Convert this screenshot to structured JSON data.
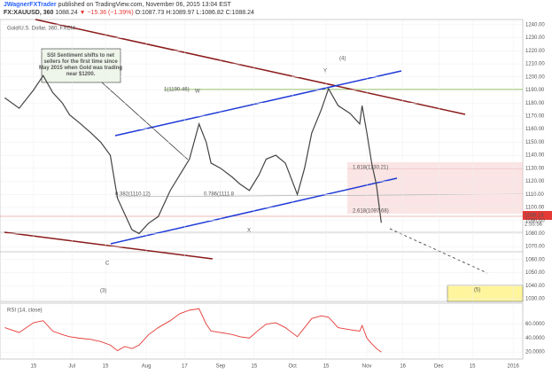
{
  "header": {
    "author": "JWagnerFXTrader",
    "published": "published on TradingView.com, November 06, 2015 13:04 EST",
    "symbol": "FX:XAUUSD, 360",
    "price": "1088.24",
    "change": "▼ −15.36 (−1.39%)",
    "ohlc": "O:1087.73 H:1089.97 L:1086.82 C:1088.24"
  },
  "chart_data": [
    {
      "type": "line",
      "title": "Gold/U.S. Dollar, 360, FXCM",
      "x": [
        2,
        8,
        14,
        18,
        22,
        26,
        29,
        33,
        38,
        42,
        46,
        49,
        52,
        55,
        58,
        62,
        66,
        71,
        75,
        79,
        83,
        86,
        88,
        92,
        97,
        100,
        104,
        108,
        111,
        115,
        119,
        124,
        127,
        130,
        134,
        137,
        141,
        146,
        150,
        151,
        153,
        155,
        157,
        159
      ],
      "series": [
        {
          "name": "XAUUSD",
          "color": "#444444",
          "values": [
            1184,
            1176,
            1190,
            1201,
            1188,
            1180,
            1171,
            1165,
            1157,
            1150,
            1140,
            1107,
            1095,
            1083,
            1080,
            1088,
            1093,
            1113,
            1125,
            1137,
            1164,
            1150,
            1134,
            1130,
            1123,
            1118,
            1113,
            1125,
            1137,
            1140,
            1134,
            1110,
            1130,
            1157,
            1175,
            1191,
            1178,
            1172,
            1164,
            1178,
            1157,
            1134,
            1117,
            1088.24
          ]
        }
      ],
      "xlim": [
        0,
        218
      ],
      "xticks": [
        {
          "value": 14,
          "label": "15"
        },
        {
          "value": 30,
          "label": "Jul"
        },
        {
          "value": 44,
          "label": "15"
        },
        {
          "value": 61,
          "label": "Aug"
        },
        {
          "value": 77,
          "label": "17"
        },
        {
          "value": 92,
          "label": "Sep"
        },
        {
          "value": 106,
          "label": "15"
        },
        {
          "value": 122,
          "label": "Oct"
        },
        {
          "value": 136,
          "label": "15"
        },
        {
          "value": 153,
          "label": "Nov"
        },
        {
          "value": 168,
          "label": "16"
        },
        {
          "value": 183,
          "label": "Dec"
        },
        {
          "value": 197,
          "label": "15"
        },
        {
          "value": 214,
          "label": "2016"
        }
      ],
      "ylim": [
        1028,
        1244
      ],
      "yticks": [
        {
          "value": 1030,
          "label": "1030.00"
        },
        {
          "value": 1040,
          "label": "1040.00"
        },
        {
          "value": 1050,
          "label": "1050.00"
        },
        {
          "value": 1060,
          "label": "1060.00"
        },
        {
          "value": 1070,
          "label": "1070.00"
        },
        {
          "value": 1080,
          "label": "1080.00"
        },
        {
          "value": 1090,
          "label": "1090.00"
        },
        {
          "value": 1100,
          "label": "1100.00"
        },
        {
          "value": 1110,
          "label": "1110.00"
        },
        {
          "value": 1120,
          "label": "1120.00"
        },
        {
          "value": 1130,
          "label": "1130.00"
        },
        {
          "value": 1140,
          "label": "1140.00"
        },
        {
          "value": 1150,
          "label": "1150.00"
        },
        {
          "value": 1160,
          "label": "1160.00"
        },
        {
          "value": 1170,
          "label": "1170.00"
        },
        {
          "value": 1180,
          "label": "1180.00"
        },
        {
          "value": 1190,
          "label": "1190.00"
        },
        {
          "value": 1200,
          "label": "1200.00"
        },
        {
          "value": 1210,
          "label": "1210.00"
        },
        {
          "value": 1220,
          "label": "1220.00"
        },
        {
          "value": 1230,
          "label": "1230.00"
        },
        {
          "value": 1240,
          "label": "1240.00"
        }
      ],
      "countdown": "2:55:56",
      "annotations": [
        "SSI Sentiment shifts to net sellers for the first time since May 2015 when Gold was trading near $1200.",
        "W",
        "Y",
        "(4)",
        "X",
        "C",
        "(3)",
        "(5)",
        "1(1190.46)",
        "0.382(1110.12)",
        "0.786(1111.8",
        "1.618(1130.21)",
        "2.618(1097.68)"
      ],
      "grid": true
    },
    {
      "type": "line",
      "title": "RSI (14, close)",
      "x": [
        2,
        8,
        14,
        18,
        22,
        26,
        29,
        33,
        38,
        42,
        46,
        49,
        52,
        55,
        58,
        62,
        66,
        71,
        75,
        79,
        83,
        86,
        88,
        92,
        97,
        100,
        104,
        108,
        111,
        115,
        119,
        124,
        127,
        130,
        134,
        137,
        141,
        146,
        150,
        151,
        153,
        155,
        157,
        159
      ],
      "series": [
        {
          "name": "RSI",
          "color": "#e53935",
          "values": [
            55,
            48,
            62,
            65,
            50,
            45,
            42,
            40,
            38,
            35,
            30,
            22,
            28,
            25,
            30,
            45,
            55,
            65,
            75,
            80,
            82,
            60,
            50,
            48,
            45,
            42,
            40,
            52,
            60,
            62,
            55,
            42,
            55,
            68,
            72,
            70,
            55,
            52,
            50,
            58,
            40,
            32,
            25,
            20
          ]
        }
      ],
      "xlim": [
        0,
        218
      ],
      "ylim": [
        10,
        90
      ],
      "yticks": [
        {
          "value": 20,
          "label": "20.0000"
        },
        {
          "value": 40,
          "label": "40.0000"
        },
        {
          "value": 60,
          "label": "60.0000"
        }
      ],
      "grid": true
    }
  ]
}
